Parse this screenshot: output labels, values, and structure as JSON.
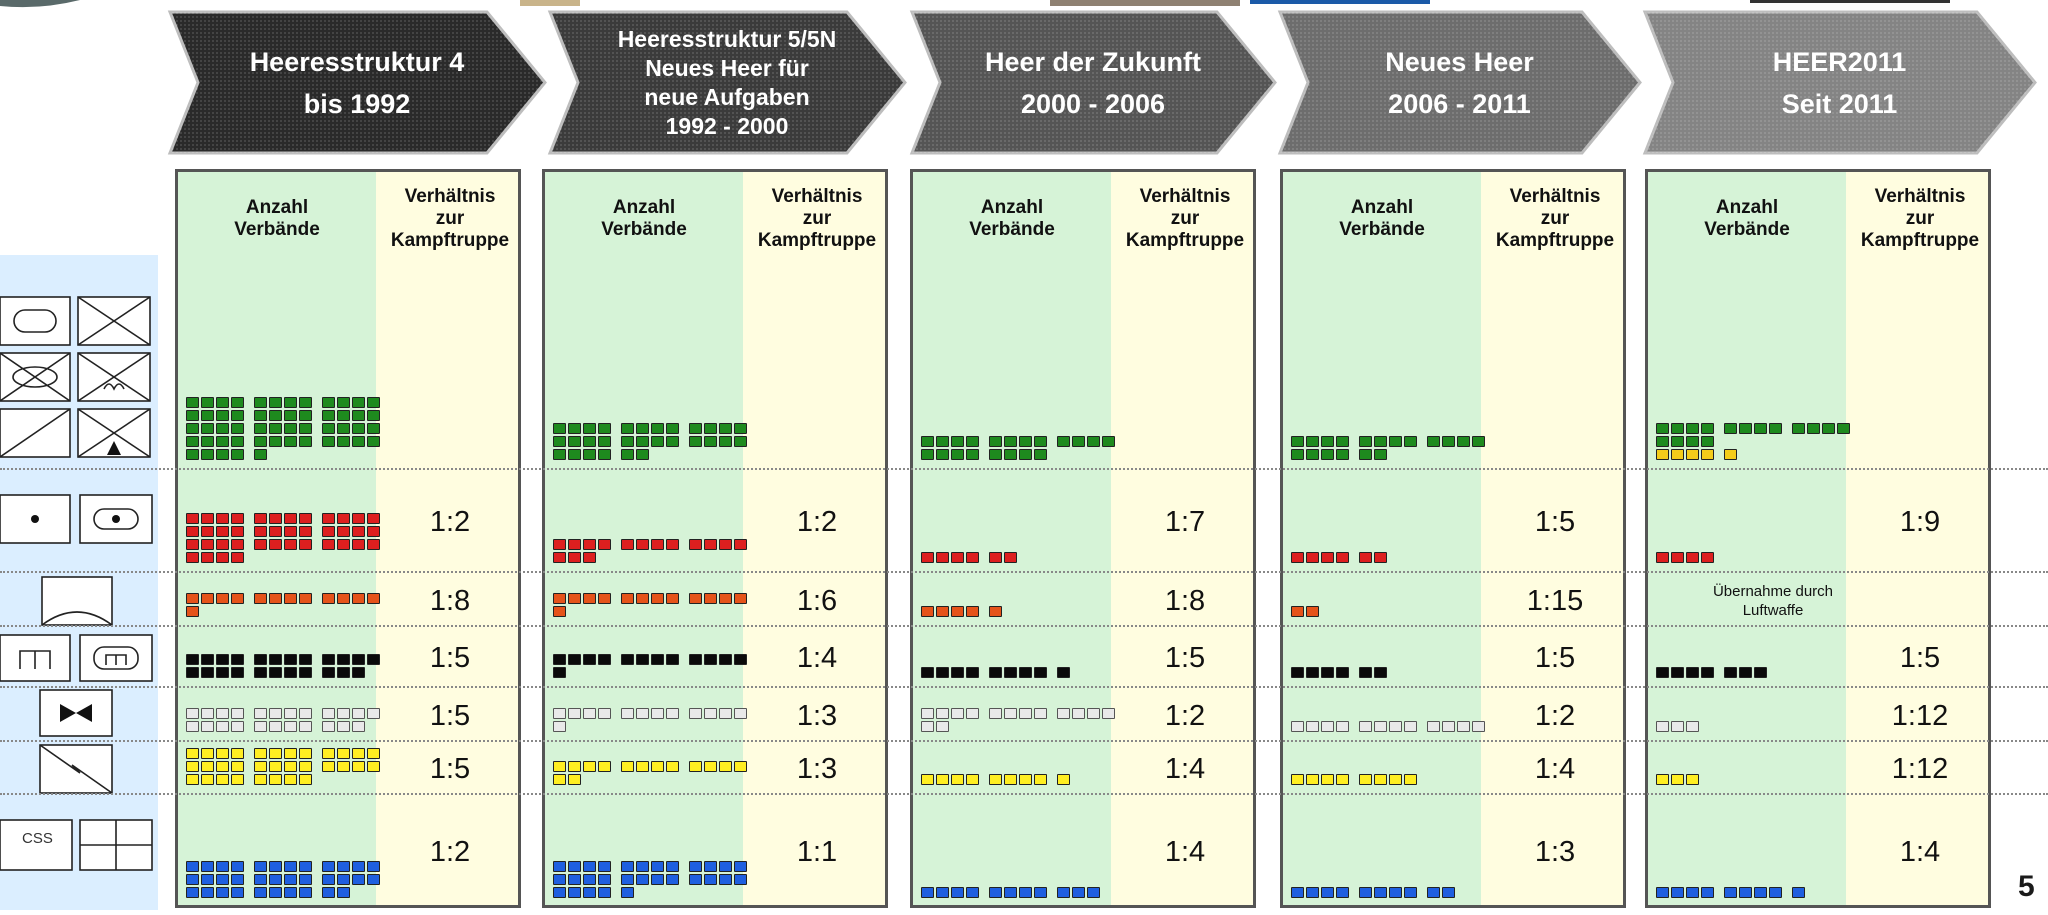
{
  "eras": [
    {
      "title": [
        "Heeresstruktur 4",
        "bis 1992"
      ],
      "col_a_label": [
        "Anzahl",
        "Verbände"
      ],
      "col_b_label": [
        "Verhältnis",
        "zur",
        "Kampftruppe"
      ],
      "rows": [
        {
          "count": 53,
          "ratio": ""
        },
        {
          "count": 40,
          "ratio": "1:2"
        },
        {
          "count": 13,
          "ratio": "1:8"
        },
        {
          "count": 23,
          "ratio": "1:5"
        },
        {
          "count": 23,
          "ratio": "1:5"
        },
        {
          "count": 32,
          "ratio": "1:5"
        },
        {
          "count": 34,
          "ratio": "1:2"
        }
      ]
    },
    {
      "title": [
        "Heeresstruktur 5/5N",
        "Neues Heer für",
        "neue Aufgaben",
        "1992 - 2000"
      ],
      "col_a_label": [
        "Anzahl",
        "Verbände"
      ],
      "col_b_label": [
        "Verhältnis",
        "zur",
        "Kampftruppe"
      ],
      "rows": [
        {
          "count": 30,
          "ratio": ""
        },
        {
          "count": 15,
          "ratio": "1:2"
        },
        {
          "count": 13,
          "ratio": "1:6"
        },
        {
          "count": 13,
          "ratio": "1:4"
        },
        {
          "count": 13,
          "ratio": "1:3"
        },
        {
          "count": 14,
          "ratio": "1:3"
        },
        {
          "count": 29,
          "ratio": "1:1"
        }
      ]
    },
    {
      "title": [
        "Heer der Zukunft",
        "2000 - 2006"
      ],
      "col_a_label": [
        "Anzahl",
        "Verbände"
      ],
      "col_b_label": [
        "Verhältnis",
        "zur",
        "Kampftruppe"
      ],
      "rows": [
        {
          "count": 20,
          "ratio": ""
        },
        {
          "count": 6,
          "ratio": "1:7"
        },
        {
          "count": 5,
          "ratio": "1:8"
        },
        {
          "count": 9,
          "ratio": "1:5"
        },
        {
          "count": 14,
          "ratio": "1:2"
        },
        {
          "count": 9,
          "ratio": "1:4"
        },
        {
          "count": 11,
          "ratio": "1:4"
        }
      ]
    },
    {
      "title": [
        "Neues Heer",
        "2006 - 2011"
      ],
      "col_a_label": [
        "Anzahl",
        "Verbände"
      ],
      "col_b_label": [
        "Verhältnis",
        "zur",
        "Kampftruppe"
      ],
      "rows": [
        {
          "count": 18,
          "ratio": ""
        },
        {
          "count": 6,
          "ratio": "1:5"
        },
        {
          "count": 2,
          "ratio": "1:15"
        },
        {
          "count": 6,
          "ratio": "1:5"
        },
        {
          "count": 12,
          "ratio": "1:2"
        },
        {
          "count": 8,
          "ratio": "1:4"
        },
        {
          "count": 10,
          "ratio": "1:3"
        }
      ]
    },
    {
      "title": [
        "HEER2011",
        "Seit 2011"
      ],
      "col_a_label": [
        "Anzahl",
        "Verbände"
      ],
      "col_b_label": [
        "Verhältnis",
        "zur",
        "Kampftruppe"
      ],
      "rows": [
        {
          "count": 16,
          "ratio": "",
          "extra_yellow": 5
        },
        {
          "count": 4,
          "ratio": "1:9"
        },
        {
          "count": 0,
          "ratio": "",
          "note": [
            "Übernahme durch",
            "Luftwaffe"
          ]
        },
        {
          "count": 7,
          "ratio": "1:5"
        },
        {
          "count": 3,
          "ratio": "1:12"
        },
        {
          "count": 3,
          "ratio": "1:12"
        },
        {
          "count": 9,
          "ratio": "1:4"
        }
      ]
    }
  ],
  "row_colors": [
    "#1e8a1e",
    "#dd1f1f",
    "#e5531a",
    "#0a0a0a",
    "#c8c8c8",
    "#ffee22",
    "#1f5fe0"
  ],
  "legend": {
    "css_label": "CSS"
  },
  "page_number": "5"
}
